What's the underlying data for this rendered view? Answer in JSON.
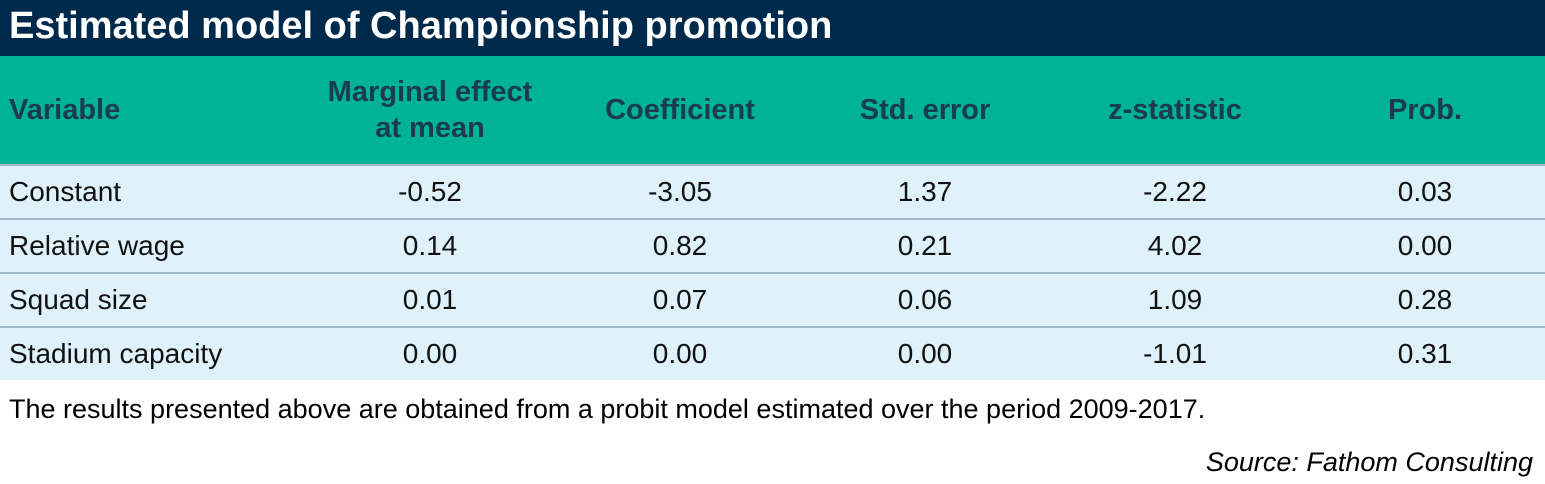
{
  "chart_data": {
    "type": "table",
    "title": "Estimated model of Championship promotion",
    "columns": [
      [
        "Variable"
      ],
      [
        "Marginal effect",
        "at mean"
      ],
      [
        "Coefficient"
      ],
      [
        "Std. error"
      ],
      [
        "z-statistic"
      ],
      [
        "Prob."
      ]
    ],
    "rows": [
      [
        "Constant",
        "-0.52",
        "-3.05",
        "1.37",
        "-2.22",
        "0.03"
      ],
      [
        "Relative wage",
        "0.14",
        "0.82",
        "0.21",
        "4.02",
        "0.00"
      ],
      [
        "Squad size",
        "0.01",
        "0.07",
        "0.06",
        "1.09",
        "0.28"
      ],
      [
        "Stadium capacity",
        "0.00",
        "0.00",
        "0.00",
        "-1.01",
        "0.31"
      ]
    ],
    "note": "The results presented above are obtained from a probit model estimated over the period 2009-2017.",
    "source": "Source: Fathom Consulting"
  },
  "colors": {
    "title_bg": "#002a4b",
    "header_bg": "#00b394",
    "row_bg": "#dff2fc"
  }
}
